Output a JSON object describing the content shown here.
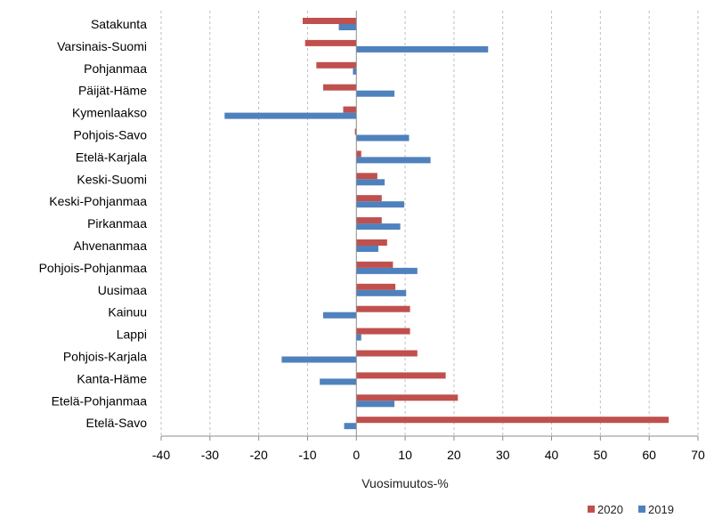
{
  "chart_data": {
    "type": "bar",
    "orientation": "horizontal",
    "categories": [
      "Satakunta",
      "Varsinais-Suomi",
      "Pohjanmaa",
      "Päijät-Häme",
      "Kymenlaakso",
      "Pohjois-Savo",
      "Etelä-Karjala",
      "Keski-Suomi",
      "Keski-Pohjanmaa",
      "Pirkanmaa",
      "Ahvenanmaa",
      "Pohjois-Pohjanmaa",
      "Uusimaa",
      "Kainuu",
      "Lappi",
      "Pohjois-Karjala",
      "Kanta-Häme",
      "Etelä-Pohjanmaa",
      "Etelä-Savo"
    ],
    "series": [
      {
        "name": "2020",
        "color": "#c0504d",
        "values": [
          -11,
          -10.5,
          -8.2,
          -6.8,
          -2.7,
          -0.3,
          1,
          4.3,
          5.2,
          5.2,
          6.3,
          7.5,
          8,
          11,
          11,
          12.5,
          18.3,
          20.8,
          64
        ]
      },
      {
        "name": "2019",
        "color": "#4f81bd",
        "values": [
          -3.6,
          27,
          -0.7,
          7.8,
          -27,
          10.8,
          15.2,
          5.8,
          9.8,
          9,
          4.5,
          12.5,
          10.2,
          -6.8,
          1,
          -15.3,
          -7.5,
          7.8,
          -2.5
        ]
      }
    ],
    "x_ticks": [
      -40,
      -30,
      -20,
      -10,
      0,
      10,
      20,
      30,
      40,
      50,
      60,
      70
    ],
    "xlim": [
      -40,
      70
    ],
    "xlabel": "Vuosimuutos-%",
    "grid": "vertical dashed",
    "legend_position": "bottom-right"
  }
}
